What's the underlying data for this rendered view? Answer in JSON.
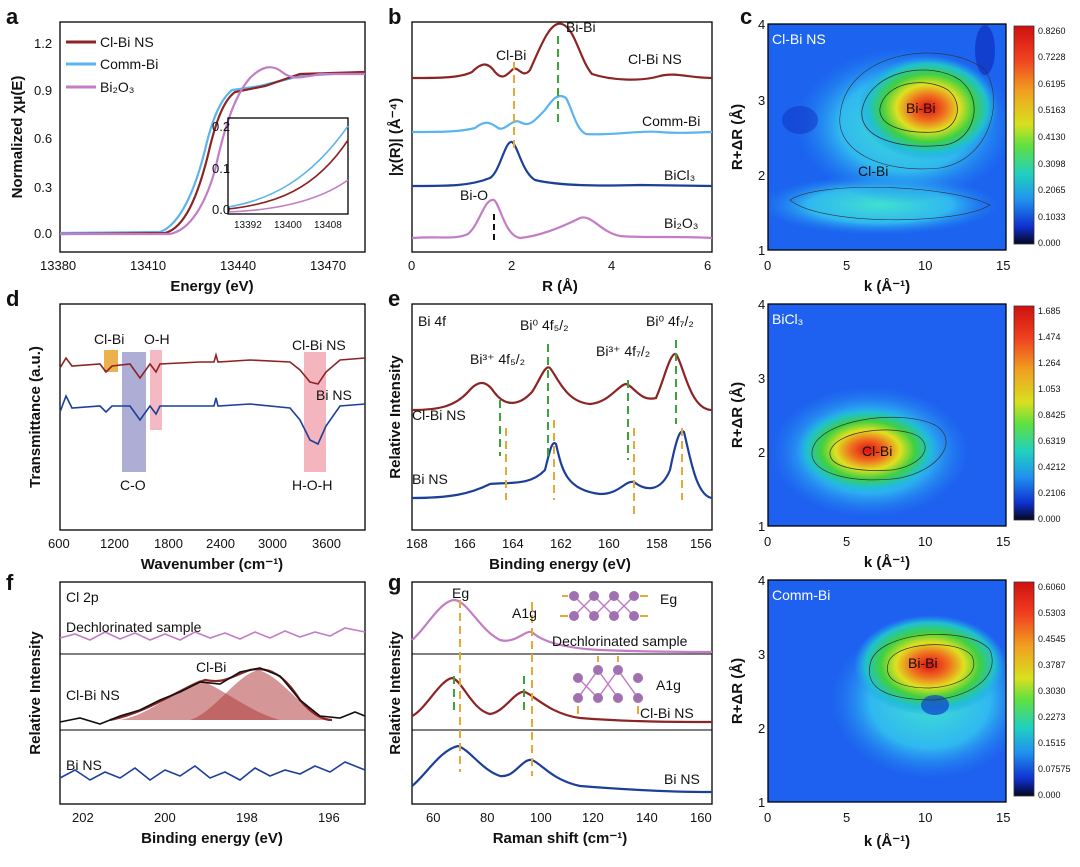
{
  "colors": {
    "red": "#8c2424",
    "blue": "#1c3f9a",
    "lightblue": "#5ab4ee",
    "purple": "#c27dc6",
    "orange": "#e8a838",
    "green": "#3aa33a",
    "pink": "#f2a8b4",
    "lavender": "#9a98cc",
    "black": "#111111"
  },
  "panels": {
    "a": {
      "label": "a",
      "xlabel": "Energy (eV)",
      "ylabel": "Normalized χμ(E)",
      "xticks": [
        "13380",
        "13410",
        "13440",
        "13470"
      ],
      "yticks": [
        "0.0",
        "0.3",
        "0.6",
        "0.9",
        "1.2"
      ],
      "legend": [
        "Cl-Bi NS",
        "Comm-Bi",
        "Bi₂O₃"
      ],
      "inset": {
        "xticks": [
          "13392",
          "13400",
          "13408"
        ],
        "yticks": [
          "0.0",
          "0.1",
          "0.2"
        ]
      }
    },
    "b": {
      "label": "b",
      "xlabel": "R (Å)",
      "ylabel": "|χ(R)| (Å⁻⁴)",
      "xticks": [
        "0",
        "2",
        "4",
        "6"
      ],
      "series": [
        "Cl-Bi NS",
        "Comm-Bi",
        "BiCl₃",
        "Bi₂O₃"
      ],
      "annotations": [
        "Cl-Bi",
        "Bi-Bi",
        "Bi-O"
      ]
    },
    "c": {
      "label": "c",
      "xlabel": "k (Å⁻¹)",
      "ylabel": "R+ΔR (Å)",
      "xticks": [
        "0",
        "5",
        "10",
        "15"
      ],
      "yticks": [
        "1",
        "2",
        "3",
        "4"
      ],
      "maps": [
        {
          "title": "Cl-Bi NS",
          "peak": "Bi-Bi",
          "second": "Cl-Bi",
          "scale": [
            "0.8260",
            "0.7228",
            "0.6195",
            "0.5163",
            "0.4130",
            "0.3098",
            "0.2065",
            "0.1033",
            "0.000"
          ]
        },
        {
          "title": "BiCl₃",
          "peak": "Cl-Bi",
          "scale": [
            "1.685",
            "1.474",
            "1.264",
            "1.053",
            "0.8425",
            "0.6319",
            "0.4212",
            "0.2106",
            "0.000"
          ]
        },
        {
          "title": "Comm-Bi",
          "peak": "Bi-Bi",
          "scale": [
            "0.6060",
            "0.5303",
            "0.4545",
            "0.3787",
            "0.3030",
            "0.2273",
            "0.1515",
            "0.07575",
            "0.000"
          ]
        }
      ]
    },
    "d": {
      "label": "d",
      "xlabel": "Wavenumber (cm⁻¹)",
      "ylabel": "Transmittance (a.u.)",
      "xticks": [
        "600",
        "1200",
        "1800",
        "2400",
        "3000",
        "3600"
      ],
      "annotations": [
        "Cl-Bi",
        "O-H",
        "C-O",
        "H-O-H",
        "Cl-Bi NS",
        "Bi NS"
      ]
    },
    "e": {
      "label": "e",
      "xlabel": "Binding energy (eV)",
      "ylabel": "Relative Intensity",
      "xticks": [
        "168",
        "166",
        "164",
        "162",
        "160",
        "158",
        "156"
      ],
      "title": "Bi 4f",
      "annotations": [
        "Bi³⁺ 4f₅/₂",
        "Bi⁰ 4f₅/₂",
        "Bi³⁺ 4f₇/₂",
        "Bi⁰ 4f₇/₂",
        "Cl-Bi NS",
        "Bi NS"
      ]
    },
    "f": {
      "label": "f",
      "xlabel": "Binding energy (eV)",
      "ylabel": "Relative Intensity",
      "xticks": [
        "202",
        "200",
        "198",
        "196"
      ],
      "title": "Cl 2p",
      "annotations": [
        "Dechlorinated sample",
        "Cl-Bi NS",
        "Cl-Bi",
        "Bi NS"
      ]
    },
    "g": {
      "label": "g",
      "xlabel": "Raman shift (cm⁻¹)",
      "ylabel": "Relative Intensity",
      "xticks": [
        "60",
        "80",
        "100",
        "120",
        "140",
        "160"
      ],
      "annotations": [
        "Eg",
        "A1g",
        "Dechlorinated sample",
        "Cl-Bi NS",
        "Bi NS"
      ]
    }
  },
  "chart_data": [
    {
      "type": "line",
      "panel": "a",
      "title": "",
      "xlabel": "Energy (eV)",
      "ylabel": "Normalized χμ(E)",
      "xlim": [
        13380,
        13480
      ],
      "ylim": [
        -0.1,
        1.3
      ],
      "series": [
        {
          "name": "Cl-Bi NS",
          "color": "#8c2424",
          "x": [
            13380,
            13400,
            13410,
            13415,
            13420,
            13425,
            13430,
            13440,
            13450,
            13460,
            13470,
            13480
          ],
          "values": [
            0.0,
            0.02,
            0.2,
            0.5,
            0.8,
            0.95,
            0.98,
            1.0,
            0.99,
            0.98,
            0.99,
            1.0
          ]
        },
        {
          "name": "Comm-Bi",
          "color": "#5ab4ee",
          "x": [
            13380,
            13400,
            13410,
            13415,
            13420,
            13425,
            13430,
            13440,
            13450,
            13460,
            13470,
            13480
          ],
          "values": [
            0.0,
            0.03,
            0.25,
            0.58,
            0.86,
            0.97,
            0.98,
            0.99,
            0.98,
            0.98,
            0.99,
            1.0
          ]
        },
        {
          "name": "Bi₂O₃",
          "color": "#c27dc6",
          "x": [
            13380,
            13400,
            13410,
            13415,
            13420,
            13425,
            13430,
            13440,
            13450,
            13460,
            13470,
            13480
          ],
          "values": [
            0.0,
            0.01,
            0.12,
            0.35,
            0.6,
            0.8,
            0.92,
            1.06,
            1.0,
            0.97,
            0.99,
            1.0
          ]
        }
      ]
    },
    {
      "type": "line",
      "panel": "b",
      "title": "",
      "xlabel": "R (Å)",
      "ylabel": "|χ(R)| (Å⁻⁴)",
      "xlim": [
        0,
        6
      ],
      "series": [
        {
          "name": "Cl-Bi NS",
          "color": "#8c2424",
          "peaks": [
            [
              1.5,
              0.6
            ],
            [
              2.1,
              0.5
            ],
            [
              2.9,
              1.2
            ]
          ]
        },
        {
          "name": "Comm-Bi",
          "color": "#5ab4ee",
          "peaks": [
            [
              1.6,
              0.3
            ],
            [
              2.2,
              0.4
            ],
            [
              2.9,
              1.0
            ]
          ]
        },
        {
          "name": "BiCl₃",
          "color": "#1c3f9a",
          "peaks": [
            [
              2.05,
              1.0
            ]
          ]
        },
        {
          "name": "Bi₂O₃",
          "color": "#c27dc6",
          "peaks": [
            [
              1.65,
              0.9
            ],
            [
              3.5,
              0.4
            ]
          ]
        }
      ]
    },
    {
      "type": "line",
      "panel": "d",
      "title": "",
      "xlabel": "Wavenumber (cm⁻¹)",
      "ylabel": "Transmittance (a.u.)",
      "xlim": [
        600,
        4000
      ],
      "series": [
        {
          "name": "Cl-Bi NS",
          "color": "#8c2424"
        },
        {
          "name": "Bi NS",
          "color": "#1c3f9a"
        }
      ]
    },
    {
      "type": "line",
      "panel": "e",
      "title": "Bi 4f",
      "xlabel": "Binding energy (eV)",
      "ylabel": "Relative Intensity",
      "xlim": [
        168,
        155.5
      ],
      "series": [
        {
          "name": "Cl-Bi NS",
          "color": "#8c2424",
          "peaks": [
            [
              164.4,
              0.5
            ],
            [
              162.3,
              0.8
            ],
            [
              159.1,
              0.55
            ],
            [
              156.9,
              1.0
            ]
          ]
        },
        {
          "name": "Bi NS",
          "color": "#1c3f9a",
          "peaks": [
            [
              164.2,
              0.15
            ],
            [
              162.0,
              0.9
            ],
            [
              158.8,
              0.25
            ],
            [
              156.8,
              1.0
            ]
          ]
        }
      ]
    },
    {
      "type": "line",
      "panel": "f",
      "title": "Cl 2p",
      "xlabel": "Binding energy (eV)",
      "ylabel": "Relative Intensity",
      "xlim": [
        203,
        195.5
      ],
      "series": [
        {
          "name": "Dechlorinated sample",
          "color": "#c27dc6"
        },
        {
          "name": "Cl-Bi NS",
          "color": "#8c2424",
          "peaks": [
            [
              199.3,
              0.8
            ],
            [
              197.8,
              1.0
            ]
          ]
        },
        {
          "name": "Bi NS",
          "color": "#1c3f9a"
        }
      ]
    },
    {
      "type": "line",
      "panel": "g",
      "title": "",
      "xlabel": "Raman shift (cm⁻¹)",
      "ylabel": "Relative Intensity",
      "xlim": [
        52,
        160
      ],
      "series": [
        {
          "name": "Dechlorinated sample",
          "color": "#c27dc6",
          "peaks": [
            [
              69,
              1.0
            ],
            [
              95,
              0.4
            ]
          ]
        },
        {
          "name": "Cl-Bi NS",
          "color": "#8c2424",
          "peaks": [
            [
              68,
              1.0
            ],
            [
              93,
              0.6
            ]
          ]
        },
        {
          "name": "Bi NS",
          "color": "#1c3f9a",
          "peaks": [
            [
              70,
              0.8
            ],
            [
              96,
              0.5
            ]
          ]
        }
      ]
    },
    {
      "type": "heatmap",
      "panel": "c",
      "title": "Cl-Bi NS",
      "xlabel": "k (Å⁻¹)",
      "ylabel": "R+ΔR (Å)",
      "xlim": [
        0,
        15
      ],
      "ylim": [
        1,
        4
      ],
      "peak_k": 9.5,
      "peak_R": 2.9,
      "max": 0.826
    },
    {
      "type": "heatmap",
      "panel": "c2",
      "title": "BiCl₃",
      "xlabel": "k (Å⁻¹)",
      "ylabel": "R+ΔR (Å)",
      "xlim": [
        0,
        15
      ],
      "ylim": [
        1,
        4
      ],
      "peak_k": 6.8,
      "peak_R": 2.0,
      "max": 1.685
    },
    {
      "type": "heatmap",
      "panel": "c3",
      "title": "Comm-Bi",
      "xlabel": "k (Å⁻¹)",
      "ylabel": "R+ΔR (Å)",
      "xlim": [
        0,
        15
      ],
      "ylim": [
        1,
        4
      ],
      "peak_k": 9.8,
      "peak_R": 2.9,
      "max": 0.606
    }
  ]
}
